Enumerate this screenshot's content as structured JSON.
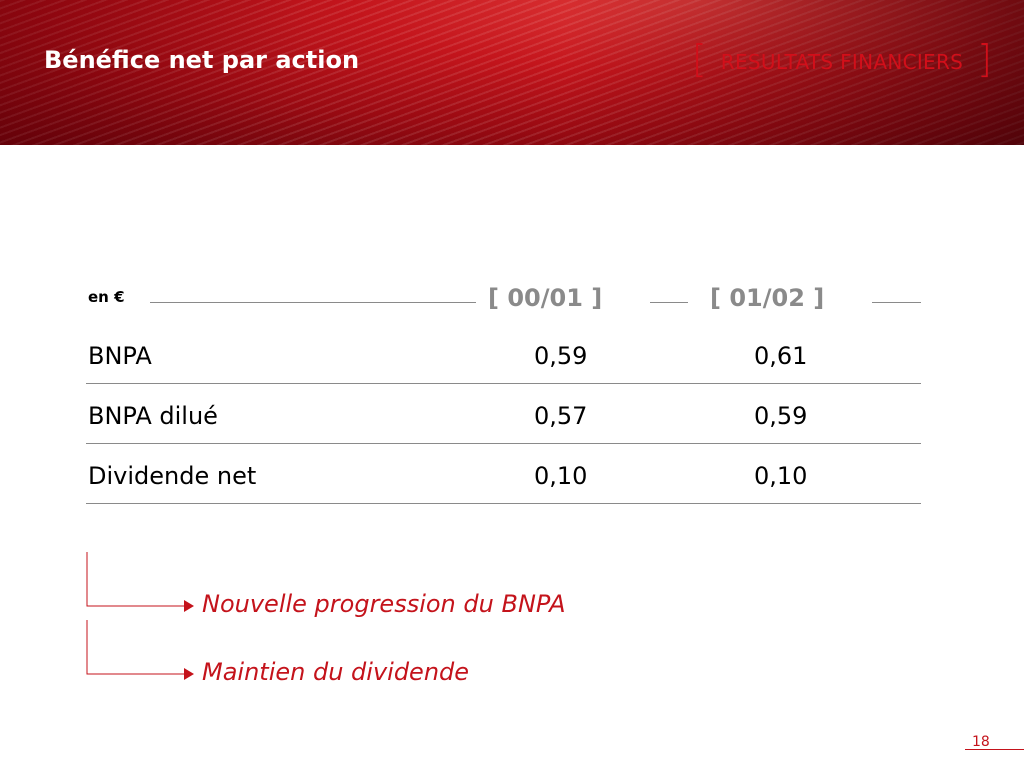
{
  "header": {
    "title": "Bénéfice net par action",
    "section_bracket_open": "[",
    "section": "RESULTATS FINANCIERS",
    "section_bracket_close": "]"
  },
  "table": {
    "unit": "en €",
    "columns": [
      "[ 00/01 ]",
      "[ 01/02 ]"
    ],
    "rows": [
      {
        "label": "BNPA",
        "values": [
          "0,59",
          "0,61"
        ]
      },
      {
        "label": "BNPA dilué",
        "values": [
          "0,57",
          "0,59"
        ]
      },
      {
        "label": "Dividende net",
        "values": [
          "0,10",
          "0,10"
        ]
      }
    ]
  },
  "notes": [
    "Nouvelle progression du BNPA",
    "Maintien du dividende"
  ],
  "footer": {
    "page_number": "18"
  },
  "colors": {
    "accent": "#c4131b",
    "grey": "#8a8a8a"
  }
}
